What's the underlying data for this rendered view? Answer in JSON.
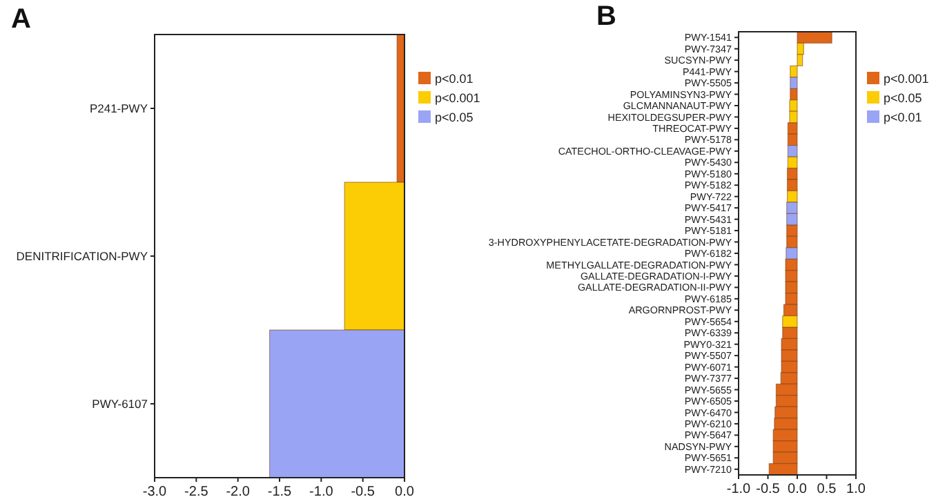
{
  "chart_data": [
    {
      "type": "bar",
      "title": "A",
      "orientation": "horizontal",
      "legend": "right",
      "categories": [
        "P241-PWY",
        "DENITRIFICATION-PWY",
        "PWY-6107"
      ],
      "xlim": [
        -3,
        0
      ],
      "xticks": [
        {
          "value": -3,
          "label": "-3.0"
        },
        {
          "value": -2.5,
          "label": "-2.5"
        },
        {
          "value": -2,
          "label": "-2.0"
        },
        {
          "value": -1.5,
          "label": "-1.5"
        },
        {
          "value": -1,
          "label": "-1.0"
        },
        {
          "value": -0.5,
          "label": "-0.5"
        },
        {
          "value": 0,
          "label": "0.0"
        }
      ],
      "series": [
        {
          "name": "p<0.01",
          "color": "#e0661a",
          "values": [
            -0.09,
            null,
            null
          ]
        },
        {
          "name": "p<0.001",
          "color": "#fccc05",
          "values": [
            null,
            -0.72,
            null
          ]
        },
        {
          "name": "p<0.05",
          "color": "#9aa4f5",
          "values": [
            null,
            null,
            -1.62
          ]
        }
      ]
    },
    {
      "type": "bar",
      "title": "B",
      "orientation": "horizontal",
      "legend": "right",
      "categories": [
        "PWY-1541",
        "PWY-7347",
        "SUCSYN-PWY",
        "P441-PWY",
        "PWY-5505",
        "POLYAMINSYN3-PWY",
        "GLCMANNANAUT-PWY",
        "HEXITOLDEGSUPER-PWY",
        "THREOCAT-PWY",
        "PWY-5178",
        "CATECHOL-ORTHO-CLEAVAGE-PWY",
        "PWY-5430",
        "PWY-5180",
        "PWY-5182",
        "PWY-722",
        "PWY-5417",
        "PWY-5431",
        "PWY-5181",
        "3-HYDROXYPHENYLACETATE-DEGRADATION-PWY",
        "PWY-6182",
        "METHYLGALLATE-DEGRADATION-PWY",
        "GALLATE-DEGRADATION-I-PWY",
        "GALLATE-DEGRADATION-II-PWY",
        "PWY-6185",
        "ARGORNPROST-PWY",
        "PWY-5654",
        "PWY-6339",
        "PWY0-321",
        "PWY-5507",
        "PWY-6071",
        "PWY-7377",
        "PWY-5655",
        "PWY-6505",
        "PWY-6470",
        "PWY-6210",
        "PWY-5647",
        "NADSYN-PWY",
        "PWY-5651",
        "PWY-7210"
      ],
      "xlim": [
        -1,
        1
      ],
      "xticks": [
        {
          "value": -1,
          "label": "-1.0"
        },
        {
          "value": -0.5,
          "label": "-0.5"
        },
        {
          "value": 0,
          "label": "0.0"
        },
        {
          "value": 0.5,
          "label": "0.5"
        },
        {
          "value": 1,
          "label": "1.0"
        }
      ],
      "series": [
        {
          "name": "p<0.001",
          "color": "#e0661a",
          "values": [
            0.59,
            null,
            null,
            null,
            null,
            -0.12,
            null,
            null,
            -0.16,
            -0.16,
            null,
            null,
            -0.17,
            -0.17,
            null,
            null,
            null,
            -0.18,
            -0.18,
            null,
            -0.2,
            -0.2,
            -0.2,
            -0.2,
            -0.23,
            null,
            -0.25,
            -0.27,
            -0.27,
            -0.27,
            -0.28,
            -0.36,
            -0.36,
            -0.38,
            -0.39,
            -0.41,
            -0.41,
            -0.41,
            -0.48
          ]
        },
        {
          "name": "p<0.05",
          "color": "#fccc05",
          "values": [
            null,
            0.11,
            0.09,
            -0.12,
            null,
            null,
            -0.13,
            -0.13,
            null,
            null,
            null,
            -0.16,
            null,
            null,
            -0.17,
            null,
            null,
            null,
            null,
            null,
            null,
            null,
            null,
            null,
            null,
            -0.25,
            null,
            null,
            null,
            null,
            null,
            null,
            null,
            null,
            null,
            null,
            null,
            null,
            null
          ]
        },
        {
          "name": "p<0.01",
          "color": "#9aa4f5",
          "values": [
            null,
            null,
            null,
            null,
            -0.12,
            null,
            null,
            null,
            null,
            null,
            -0.16,
            null,
            null,
            null,
            null,
            -0.18,
            -0.18,
            null,
            null,
            -0.19,
            null,
            null,
            null,
            null,
            null,
            null,
            null,
            null,
            null,
            null,
            null,
            null,
            null,
            null,
            null,
            null,
            null,
            null,
            null
          ]
        }
      ]
    }
  ]
}
